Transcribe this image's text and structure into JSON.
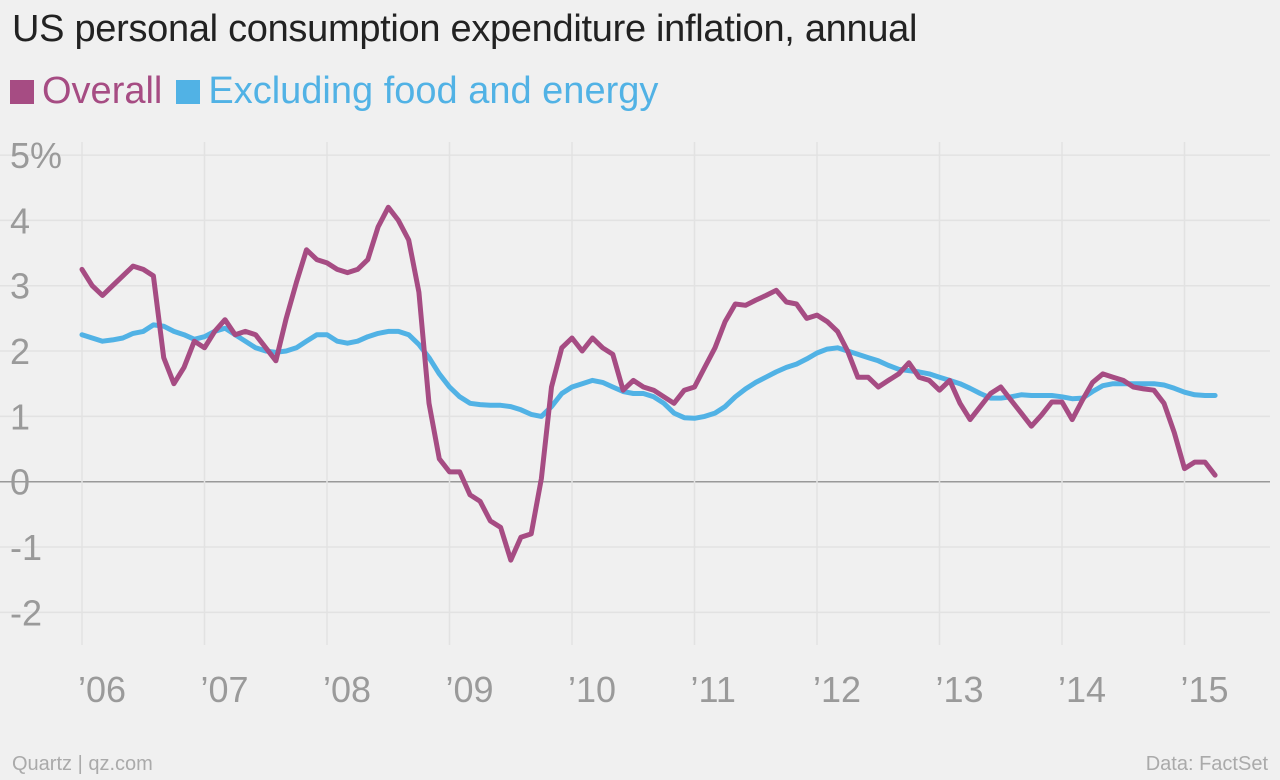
{
  "footer": {
    "source_left": "Quartz | qz.com",
    "source_right": "Data: FactSet"
  },
  "chart_data": {
    "type": "line",
    "title": "US personal consumption expenditure inflation, annual",
    "xlabel": "",
    "ylabel": "",
    "ylim": [
      -2.5,
      5.2
    ],
    "yticks": [
      5,
      4,
      3,
      2,
      1,
      0,
      -1,
      -2
    ],
    "ytick_labels": [
      "5%",
      "4",
      "3",
      "2",
      "1",
      "0",
      "-1",
      "-2"
    ],
    "xticks": [
      2006,
      2007,
      2008,
      2009,
      2010,
      2011,
      2012,
      2013,
      2014,
      2015
    ],
    "xtick_labels": [
      "’06",
      "’07",
      "’08",
      "’09",
      "’10",
      "’11",
      "’12",
      "’13",
      "’14",
      "’15"
    ],
    "grid": true,
    "legend_position": "top-left",
    "series": [
      {
        "name": "Overall",
        "color": "#a64c83",
        "x": [
          2006.0,
          2006.083,
          2006.167,
          2006.25,
          2006.333,
          2006.417,
          2006.5,
          2006.583,
          2006.667,
          2006.75,
          2006.833,
          2006.917,
          2007.0,
          2007.083,
          2007.167,
          2007.25,
          2007.333,
          2007.417,
          2007.5,
          2007.583,
          2007.667,
          2007.75,
          2007.833,
          2007.917,
          2008.0,
          2008.083,
          2008.167,
          2008.25,
          2008.333,
          2008.417,
          2008.5,
          2008.583,
          2008.667,
          2008.75,
          2008.833,
          2008.917,
          2009.0,
          2009.083,
          2009.167,
          2009.25,
          2009.333,
          2009.417,
          2009.5,
          2009.583,
          2009.667,
          2009.75,
          2009.833,
          2009.917,
          2010.0,
          2010.083,
          2010.167,
          2010.25,
          2010.333,
          2010.417,
          2010.5,
          2010.583,
          2010.667,
          2010.75,
          2010.833,
          2010.917,
          2011.0,
          2011.083,
          2011.167,
          2011.25,
          2011.333,
          2011.417,
          2011.5,
          2011.583,
          2011.667,
          2011.75,
          2011.833,
          2011.917,
          2012.0,
          2012.083,
          2012.167,
          2012.25,
          2012.333,
          2012.417,
          2012.5,
          2012.583,
          2012.667,
          2012.75,
          2012.833,
          2012.917,
          2013.0,
          2013.083,
          2013.167,
          2013.25,
          2013.333,
          2013.417,
          2013.5,
          2013.583,
          2013.667,
          2013.75,
          2013.833,
          2013.917,
          2014.0,
          2014.083,
          2014.167,
          2014.25,
          2014.333,
          2014.417,
          2014.5,
          2014.583,
          2014.667,
          2014.75,
          2014.833,
          2014.917,
          2015.0,
          2015.083,
          2015.167,
          2015.25
        ],
        "values": [
          3.25,
          3.0,
          2.85,
          3.0,
          3.15,
          3.3,
          3.25,
          3.15,
          1.9,
          1.5,
          1.75,
          2.15,
          2.05,
          2.3,
          2.48,
          2.25,
          2.3,
          2.25,
          2.05,
          1.85,
          2.5,
          3.05,
          3.55,
          3.4,
          3.35,
          3.25,
          3.2,
          3.25,
          3.4,
          3.9,
          4.2,
          4.0,
          3.7,
          2.9,
          1.2,
          0.35,
          0.15,
          0.15,
          -0.2,
          -0.3,
          -0.6,
          -0.7,
          -1.2,
          -0.85,
          -0.8,
          0.05,
          1.45,
          2.05,
          2.2,
          2.0,
          2.2,
          2.05,
          1.95,
          1.4,
          1.55,
          1.45,
          1.4,
          1.3,
          1.2,
          1.4,
          1.45,
          1.75,
          2.05,
          2.45,
          2.72,
          2.7,
          2.78,
          2.85,
          2.93,
          2.75,
          2.72,
          2.5,
          2.55,
          2.45,
          2.3,
          2.0,
          1.6,
          1.6,
          1.45,
          1.55,
          1.65,
          1.82,
          1.6,
          1.55,
          1.4,
          1.55,
          1.2,
          0.95,
          1.15,
          1.35,
          1.45,
          1.25,
          1.05,
          0.85,
          1.02,
          1.22,
          1.22,
          0.95,
          1.25,
          1.52,
          1.65,
          1.6,
          1.55,
          1.45,
          1.42,
          1.4,
          1.2,
          0.75,
          0.2,
          0.3,
          0.3,
          0.1
        ]
      },
      {
        "name": "Excluding food and energy",
        "color": "#51b2e5",
        "x": [
          2006.0,
          2006.083,
          2006.167,
          2006.25,
          2006.333,
          2006.417,
          2006.5,
          2006.583,
          2006.667,
          2006.75,
          2006.833,
          2006.917,
          2007.0,
          2007.083,
          2007.167,
          2007.25,
          2007.333,
          2007.417,
          2007.5,
          2007.583,
          2007.667,
          2007.75,
          2007.833,
          2007.917,
          2008.0,
          2008.083,
          2008.167,
          2008.25,
          2008.333,
          2008.417,
          2008.5,
          2008.583,
          2008.667,
          2008.75,
          2008.833,
          2008.917,
          2009.0,
          2009.083,
          2009.167,
          2009.25,
          2009.333,
          2009.417,
          2009.5,
          2009.583,
          2009.667,
          2009.75,
          2009.833,
          2009.917,
          2010.0,
          2010.083,
          2010.167,
          2010.25,
          2010.333,
          2010.417,
          2010.5,
          2010.583,
          2010.667,
          2010.75,
          2010.833,
          2010.917,
          2011.0,
          2011.083,
          2011.167,
          2011.25,
          2011.333,
          2011.417,
          2011.5,
          2011.583,
          2011.667,
          2011.75,
          2011.833,
          2011.917,
          2012.0,
          2012.083,
          2012.167,
          2012.25,
          2012.333,
          2012.417,
          2012.5,
          2012.583,
          2012.667,
          2012.75,
          2012.833,
          2012.917,
          2013.0,
          2013.083,
          2013.167,
          2013.25,
          2013.333,
          2013.417,
          2013.5,
          2013.583,
          2013.667,
          2013.75,
          2013.833,
          2013.917,
          2014.0,
          2014.083,
          2014.167,
          2014.25,
          2014.333,
          2014.417,
          2014.5,
          2014.583,
          2014.667,
          2014.75,
          2014.833,
          2014.917,
          2015.0,
          2015.083,
          2015.167,
          2015.25
        ],
        "values": [
          2.25,
          2.2,
          2.15,
          2.17,
          2.2,
          2.27,
          2.3,
          2.4,
          2.38,
          2.3,
          2.25,
          2.18,
          2.22,
          2.3,
          2.35,
          2.25,
          2.15,
          2.05,
          2.0,
          1.98,
          2.0,
          2.05,
          2.15,
          2.25,
          2.25,
          2.15,
          2.12,
          2.15,
          2.22,
          2.27,
          2.3,
          2.3,
          2.25,
          2.1,
          1.9,
          1.65,
          1.45,
          1.3,
          1.2,
          1.18,
          1.17,
          1.17,
          1.15,
          1.1,
          1.03,
          1.0,
          1.15,
          1.35,
          1.45,
          1.5,
          1.55,
          1.52,
          1.45,
          1.38,
          1.35,
          1.35,
          1.3,
          1.2,
          1.05,
          0.98,
          0.97,
          1.0,
          1.05,
          1.15,
          1.3,
          1.42,
          1.52,
          1.6,
          1.68,
          1.75,
          1.8,
          1.88,
          1.97,
          2.03,
          2.05,
          2.0,
          1.95,
          1.9,
          1.85,
          1.78,
          1.72,
          1.7,
          1.68,
          1.65,
          1.6,
          1.55,
          1.5,
          1.43,
          1.35,
          1.28,
          1.28,
          1.3,
          1.33,
          1.32,
          1.32,
          1.32,
          1.3,
          1.27,
          1.28,
          1.38,
          1.47,
          1.5,
          1.5,
          1.5,
          1.5,
          1.5,
          1.48,
          1.43,
          1.37,
          1.33,
          1.32,
          1.32
        ]
      }
    ]
  }
}
